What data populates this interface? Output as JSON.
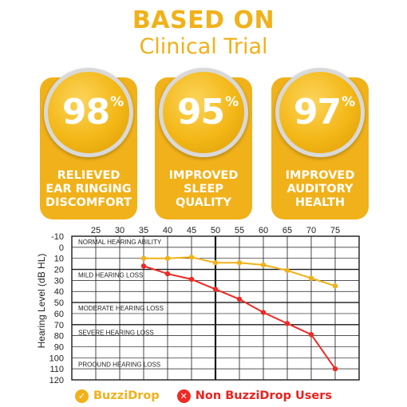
{
  "header": {
    "line1": "BASED ON",
    "line2": "Clinical Trial"
  },
  "colors": {
    "gold": "#f0b11a",
    "gold_dark": "#e3a20f",
    "red": "#ee2a24",
    "red_text": "#e8231f",
    "grid": "#1a1a1a"
  },
  "cards": [
    {
      "value": "98",
      "unit": "%",
      "line1": "RELIEVED",
      "line2": "EAR RINGING",
      "line3": "DISCOMFORT"
    },
    {
      "value": "95",
      "unit": "%",
      "line1": "IMPROVED",
      "line2": "SLEEP",
      "line3": "QUALITY"
    },
    {
      "value": "97",
      "unit": "%",
      "line1": "IMPROVED",
      "line2": "AUDITORY",
      "line3": "HEALTH"
    }
  ],
  "chart_data": {
    "type": "line",
    "ylabel": "Hearing Level (dB HL)",
    "xlabel": "",
    "x_ticks": [
      25,
      30,
      35,
      40,
      45,
      50,
      55,
      60,
      65,
      70,
      75
    ],
    "y_ticks": [
      -10,
      0,
      10,
      20,
      30,
      40,
      50,
      60,
      70,
      80,
      90,
      100,
      110,
      120
    ],
    "xlim": [
      20,
      80
    ],
    "ylim": [
      -10,
      120
    ],
    "y_inverted": true,
    "grid": true,
    "zones": [
      "NORMAL HEARING ABILITY",
      "MILD HEARING LOSS",
      "MODERATE HEARING LOSS",
      "SEVERE HEARING LOSS",
      "PROOUND HEARING LOSS"
    ],
    "zone_levels": [
      -5,
      25,
      55,
      77,
      106
    ],
    "zone_dividers": [
      20,
      50,
      70,
      95
    ],
    "series": [
      {
        "name": "BuzziDrop",
        "color": "#f0b11a",
        "x": [
          35,
          40,
          45,
          50,
          55,
          60,
          65,
          70,
          75
        ],
        "y": [
          10,
          10,
          9,
          14,
          14,
          16,
          21,
          28,
          35
        ]
      },
      {
        "name": "Non BuzziDrop Users",
        "color": "#ee2a24",
        "x": [
          35,
          40,
          45,
          50,
          55,
          60,
          65,
          70,
          75
        ],
        "y": [
          17,
          24,
          29,
          38,
          47,
          59,
          69,
          79,
          110
        ]
      }
    ]
  },
  "legend": [
    {
      "label": "BuzziDrop",
      "symbol": "✓"
    },
    {
      "label": "Non BuzziDrop Users",
      "symbol": "✕"
    }
  ]
}
